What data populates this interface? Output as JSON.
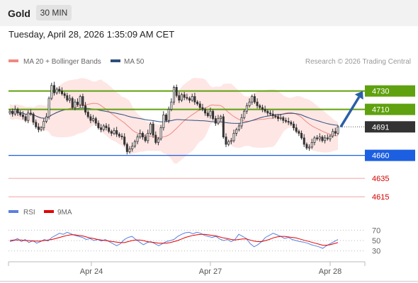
{
  "header": {
    "title": "Gold",
    "interval": "30 MIN"
  },
  "timestamp": "Tuesday, April 28, 2026 1:35:09 AM CET",
  "legend": {
    "bollinger": {
      "label": "MA 20 + Bollinger Bands",
      "color": "#ef8a80"
    },
    "ma50": {
      "label": "MA 50",
      "color": "#2d4f7c"
    },
    "credit": "Research © 2026 Trading Central"
  },
  "rsi_legend": {
    "rsi": {
      "label": "RSI",
      "color": "#5b7fe0"
    },
    "ma9": {
      "label": "9MA",
      "color": "#e30000"
    }
  },
  "colors": {
    "resistance": "#5fa10e",
    "support": "#1c5fe0",
    "minor": "#f0a0a0",
    "price": "#333333",
    "arrow": "#2a5fa5"
  },
  "chart_data": [
    {
      "type": "candlestick",
      "ylim": [
        4602,
        4752
      ],
      "x_ticks": [
        "Apr 24",
        "Apr 27",
        "Apr 28"
      ],
      "levels": [
        {
          "value": 4730,
          "label": "4730",
          "kind": "resistance"
        },
        {
          "value": 4710,
          "label": "4710",
          "kind": "resistance"
        },
        {
          "value": 4691,
          "label": "4691",
          "kind": "current"
        },
        {
          "value": 4660,
          "label": "4660",
          "kind": "support"
        },
        {
          "value": 4635,
          "label": "4635",
          "kind": "minor"
        },
        {
          "value": 4615,
          "label": "4615",
          "kind": "minor"
        }
      ],
      "close": [
        4708,
        4705,
        4710,
        4706,
        4704,
        4702,
        4698,
        4706,
        4705,
        4696,
        4691,
        4688,
        4690,
        4697,
        4702,
        4722,
        4736,
        4728,
        4732,
        4730,
        4727,
        4725,
        4720,
        4722,
        4712,
        4718,
        4715,
        4724,
        4714,
        4707,
        4702,
        4698,
        4700,
        4695,
        4690,
        4688,
        4692,
        4690,
        4686,
        4684,
        4687,
        4683,
        4681,
        4680,
        4672,
        4664,
        4667,
        4670,
        4675,
        4680,
        4684,
        4680,
        4676,
        4684,
        4694,
        4682,
        4674,
        4678,
        4690,
        4704,
        4698,
        4710,
        4718,
        4734,
        4725,
        4720,
        4726,
        4723,
        4722,
        4720,
        4724,
        4718,
        4716,
        4712,
        4710,
        4706,
        4703,
        4708,
        4700,
        4695,
        4700,
        4702,
        4680,
        4672,
        4675,
        4676,
        4684,
        4688,
        4692,
        4701,
        4708,
        4714,
        4718,
        4724,
        4718,
        4714,
        4712,
        4710,
        4708,
        4706,
        4705,
        4703,
        4702,
        4700,
        4701,
        4698,
        4697,
        4696,
        4694,
        4690,
        4686,
        4684,
        4679,
        4672,
        4668,
        4669,
        4674,
        4679,
        4678,
        4680,
        4676,
        4679,
        4678,
        4681,
        4686,
        4684,
        4691
      ]
    },
    {
      "type": "line",
      "title": "RSI",
      "y_ticks": [
        70,
        50,
        30
      ],
      "ylim": [
        20,
        80
      ],
      "series": [
        {
          "name": "RSI",
          "values": [
            48,
            50,
            54,
            48,
            52,
            46,
            50,
            45,
            48,
            52,
            49,
            56,
            60,
            64,
            62,
            66,
            63,
            60,
            58,
            56,
            52,
            54,
            50,
            52,
            49,
            52,
            48,
            44,
            40,
            44,
            52,
            56,
            58,
            52,
            47,
            42,
            46,
            48,
            44,
            40,
            44,
            48,
            50,
            52,
            58,
            62,
            65,
            66,
            63,
            66,
            64,
            60,
            58,
            56,
            58,
            53,
            50,
            52,
            48,
            52,
            62,
            58,
            54,
            44,
            38,
            42,
            48,
            56,
            60,
            64,
            61,
            58,
            54,
            56,
            52,
            50,
            48,
            47,
            45,
            42,
            40,
            38,
            35,
            40,
            44,
            48,
            52
          ]
        },
        {
          "name": "9MA",
          "values": [
            50,
            51,
            51,
            51,
            50,
            50,
            49,
            49,
            49,
            50,
            51,
            52,
            54,
            56,
            58,
            60,
            61,
            61,
            60,
            59,
            57,
            55,
            54,
            52,
            51,
            50,
            49,
            48,
            47,
            46,
            46,
            48,
            50,
            51,
            51,
            50,
            48,
            47,
            46,
            45,
            45,
            45,
            46,
            48,
            50,
            53,
            56,
            58,
            60,
            61,
            62,
            62,
            61,
            60,
            59,
            57,
            55,
            54,
            52,
            51,
            52,
            53,
            53,
            51,
            49,
            48,
            48,
            50,
            52,
            55,
            57,
            58,
            58,
            57,
            56,
            55,
            53,
            51,
            49,
            47,
            45,
            43,
            41,
            41,
            42,
            44,
            46
          ]
        }
      ]
    }
  ]
}
